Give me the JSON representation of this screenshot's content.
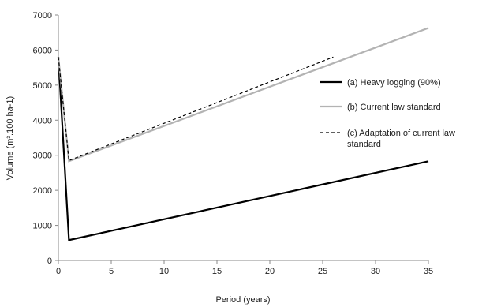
{
  "chart_data": {
    "type": "line",
    "xlabel": "Period (years)",
    "ylabel": "Volume (m³.100 ha-1)",
    "xlim": [
      0,
      35
    ],
    "ylim": [
      0,
      7000
    ],
    "xticks": [
      "0",
      "5",
      "10",
      "15",
      "20",
      "25",
      "30",
      "35"
    ],
    "yticks": [
      "0",
      "1000",
      "2000",
      "3000",
      "4000",
      "5000",
      "6000",
      "7000"
    ],
    "xtick_values": [
      0,
      5,
      10,
      15,
      20,
      25,
      30,
      35
    ],
    "ytick_values": [
      0,
      1000,
      2000,
      3000,
      4000,
      5000,
      6000,
      7000
    ],
    "grid": false,
    "legend_position": "right",
    "series": [
      {
        "name": "(a) Heavy logging (90%)",
        "color": "#000000",
        "style": "solid",
        "x": [
          0,
          1,
          35
        ],
        "y": [
          5800,
          580,
          2830
        ]
      },
      {
        "name": "(b) Current law standard",
        "color": "#b3b3b3",
        "style": "solid",
        "x": [
          0,
          1,
          35
        ],
        "y": [
          5800,
          2830,
          6630
        ]
      },
      {
        "name": "(c) Adaptation of current law standard",
        "name_lines": [
          "(c) Adaptation of current law",
          "standard"
        ],
        "color": "#000000",
        "style": "dashed",
        "x": [
          0,
          1,
          26
        ],
        "y": [
          5800,
          2850,
          5800
        ]
      }
    ]
  }
}
